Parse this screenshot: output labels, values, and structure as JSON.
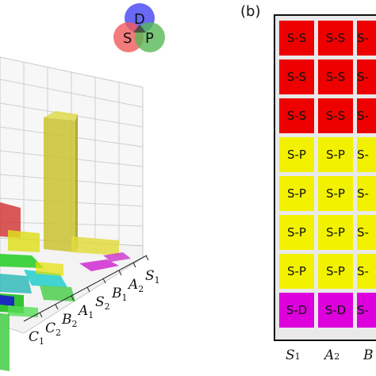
{
  "legend": {
    "circles": [
      {
        "label": "D",
        "color": "#4f4ff5"
      },
      {
        "label": "S",
        "color": "#f05a5a"
      },
      {
        "label": "P",
        "color": "#56b856"
      }
    ]
  },
  "panel_b_label": "(b)",
  "chart_data": [
    {
      "type": "bar3d",
      "axis_tick_labels": [
        "C",
        "C",
        "B",
        "A",
        "S",
        "B",
        "A",
        "S"
      ],
      "axis_tick_subscripts": [
        "1",
        "2",
        "2",
        "1",
        "2",
        "1",
        "2",
        "1"
      ],
      "colors": {
        "S-S": "#ee0000",
        "S-P": "#e6e000",
        "S-D": "#dd00dd",
        "other1": "#00cc00",
        "other2": "#00c8c8",
        "other3": "#0000cc"
      }
    },
    {
      "type": "table",
      "columns": [
        "S",
        "A",
        "B"
      ],
      "column_subscripts": [
        "1",
        "2",
        ""
      ],
      "rows": [
        [
          "S-S",
          "S-S",
          "S-"
        ],
        [
          "S-S",
          "S-S",
          "S-"
        ],
        [
          "S-S",
          "S-S",
          "S-"
        ],
        [
          "S-P",
          "S-P",
          "S-"
        ],
        [
          "S-P",
          "S-P",
          "S-"
        ],
        [
          "S-P",
          "S-P",
          "S-"
        ],
        [
          "S-P",
          "S-P",
          "S-"
        ],
        [
          "S-D",
          "S-D",
          "S-"
        ]
      ],
      "row_colors": [
        "#ee0000",
        "#ee0000",
        "#ee0000",
        "#f2f200",
        "#f2f200",
        "#f2f200",
        "#f2f200",
        "#dd00dd"
      ]
    }
  ]
}
